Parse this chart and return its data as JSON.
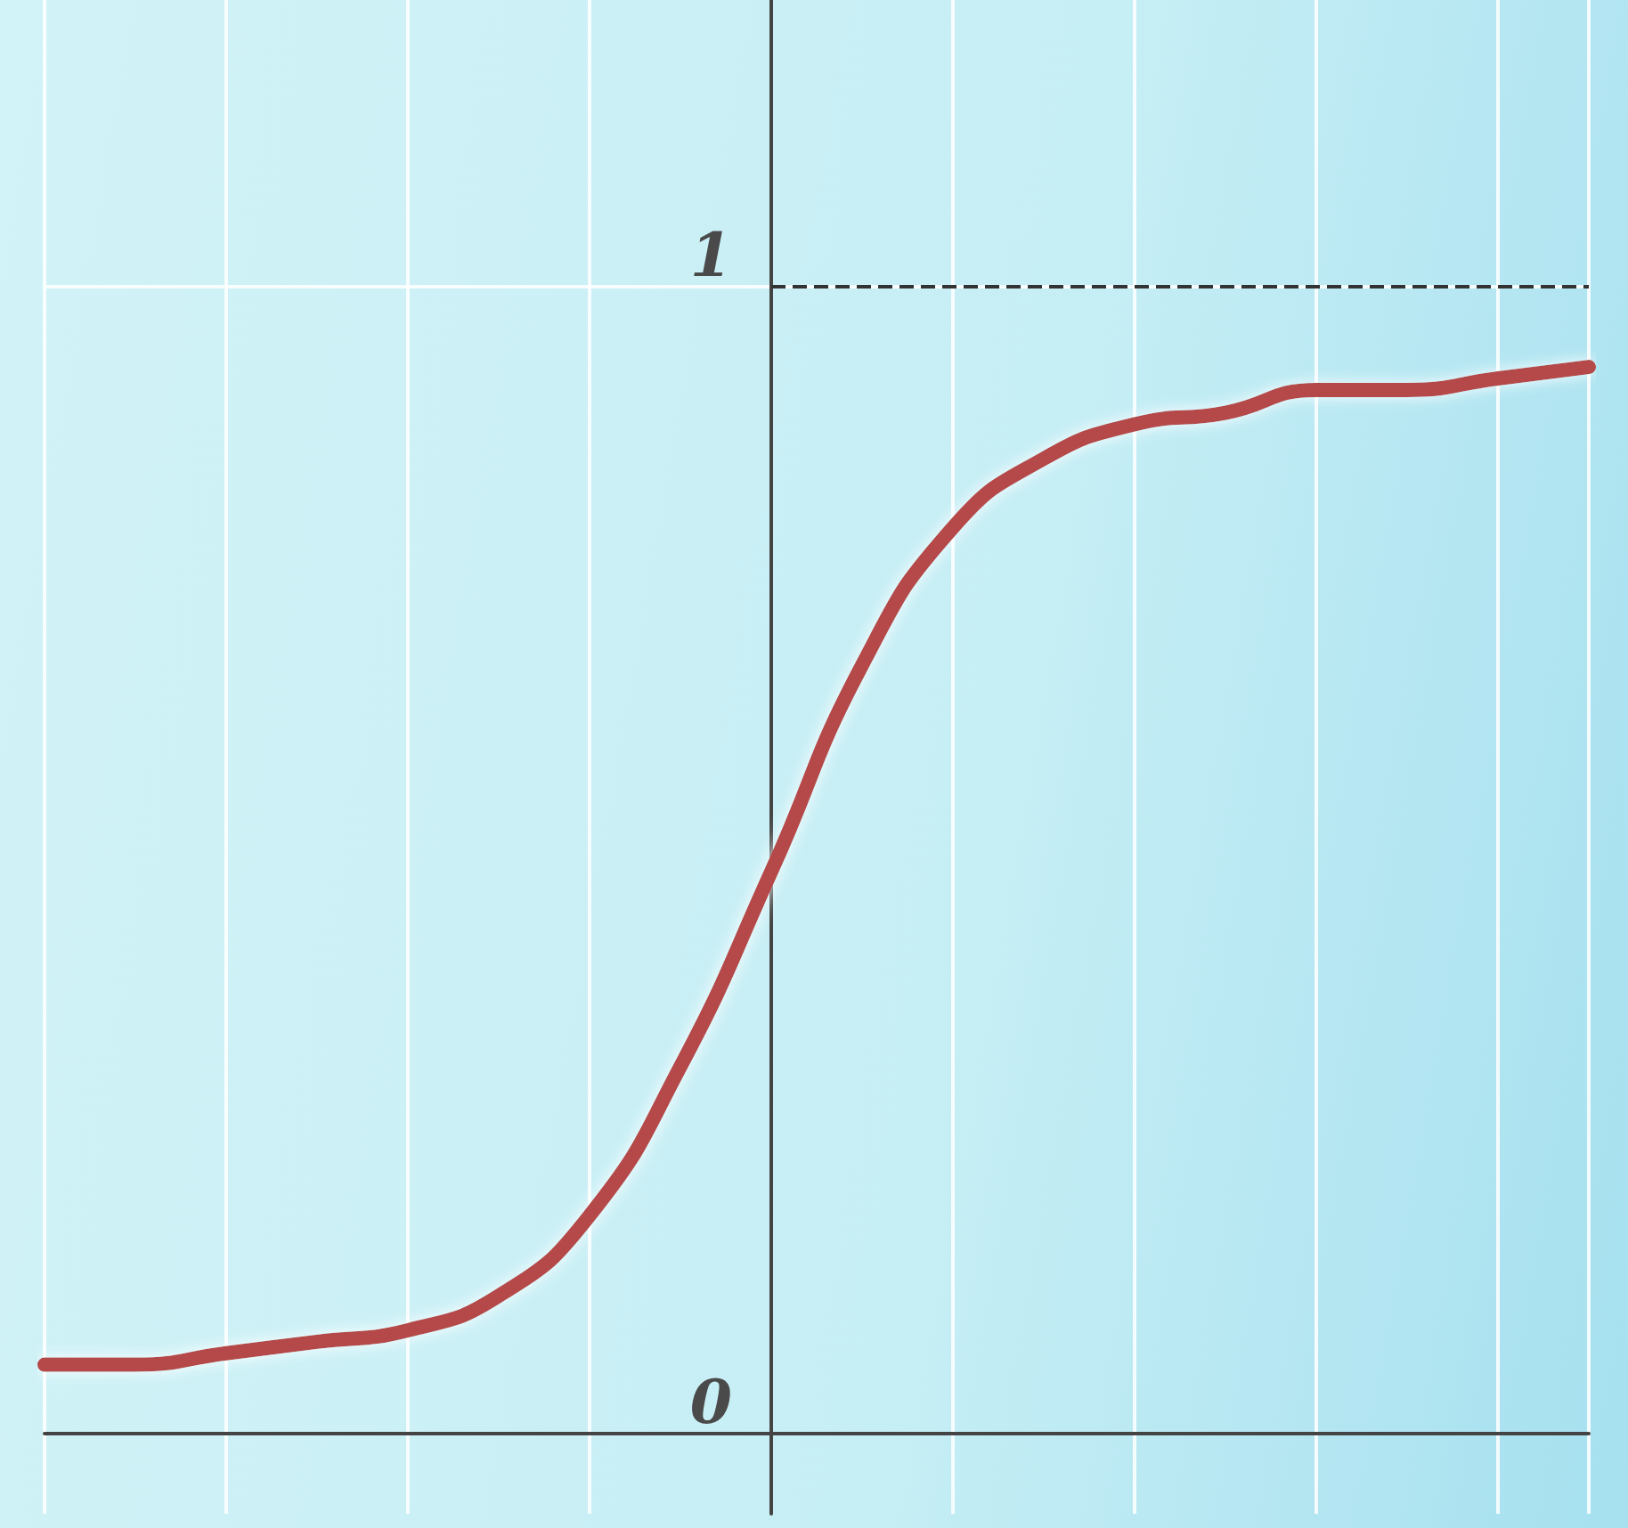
{
  "chart_data": {
    "type": "line",
    "categories": [
      null,
      null,
      null,
      null,
      null,
      null,
      null,
      null,
      null,
      null,
      null,
      null,
      null,
      null,
      null,
      null,
      null,
      null
    ],
    "series": [
      {
        "color": "#b54848",
        "values": [
          0.06,
          0.06,
          0.07,
          0.08,
          0.09,
          0.12,
          0.19,
          0.32,
          0.49,
          0.67,
          0.79,
          0.85,
          0.88,
          0.89,
          0.91,
          0.91,
          0.92,
          0.93
        ]
      }
    ],
    "ylim": [
      -0.07,
      1.25
    ],
    "yticks": [
      0,
      1
    ],
    "grid": true,
    "marker": "none",
    "line_style": "solid",
    "ref_lines": [
      {
        "axis": "y",
        "value": 1,
        "line_style": "dashed",
        "color": "#333333"
      }
    ]
  }
}
